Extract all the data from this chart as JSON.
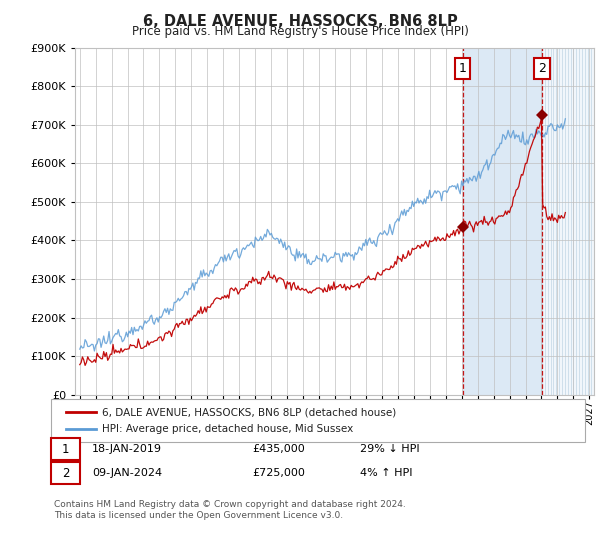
{
  "title": "6, DALE AVENUE, HASSOCKS, BN6 8LP",
  "subtitle": "Price paid vs. HM Land Registry's House Price Index (HPI)",
  "legend_label_red": "6, DALE AVENUE, HASSOCKS, BN6 8LP (detached house)",
  "legend_label_blue": "HPI: Average price, detached house, Mid Sussex",
  "annotation1_label": "1",
  "annotation1_date": "18-JAN-2019",
  "annotation1_price": "£435,000",
  "annotation1_pct": "29% ↓ HPI",
  "annotation2_label": "2",
  "annotation2_date": "09-JAN-2024",
  "annotation2_price": "£725,000",
  "annotation2_pct": "4% ↑ HPI",
  "footer": "Contains HM Land Registry data © Crown copyright and database right 2024.\nThis data is licensed under the Open Government Licence v3.0.",
  "sale1_year": 2019.05,
  "sale1_price": 435000,
  "sale2_year": 2024.03,
  "sale2_price": 725000,
  "hpi_color": "#5b9bd5",
  "price_color": "#c00000",
  "marker_color": "#8b0000",
  "background_color": "#ffffff",
  "grid_color": "#c0c0c0",
  "shade_color": "#dce9f5",
  "hatch_color": "#b8cfe0",
  "ylim": [
    0,
    900000
  ],
  "xlim_start": 1994.7,
  "xlim_end": 2027.3
}
